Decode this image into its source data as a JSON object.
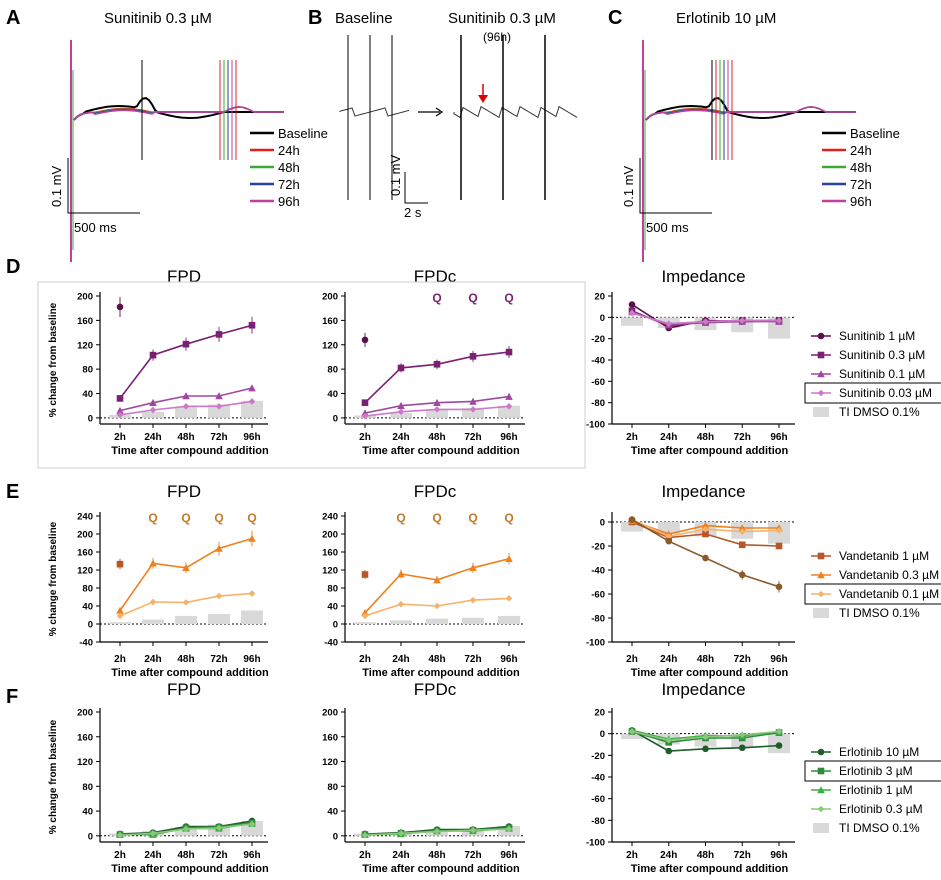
{
  "colors": {
    "baseline": "#000000",
    "h24": "#e02020",
    "h48": "#3aaa35",
    "h72": "#2444a0",
    "h96": "#c040a0",
    "suni": [
      "#5a0f4f",
      "#7b1f73",
      "#a047a0",
      "#cc7ac8"
    ],
    "vand": [
      "#b8572a",
      "#f0801e",
      "#f6b26b",
      "#8b5a2b"
    ],
    "erlo": [
      "#1e5c28",
      "#2e8b3c",
      "#3cac44",
      "#8cc87a"
    ],
    "dmso": "#d9d9d9",
    "star": "#8a2a80"
  },
  "panel_labels": [
    "A",
    "B",
    "C",
    "D",
    "E",
    "F"
  ],
  "trace_panels": {
    "A": {
      "title": "Sunitinib 0.3 µM",
      "legend": [
        "Baseline",
        "24h",
        "48h",
        "72h",
        "96h"
      ],
      "scale_v": "0.1 mV",
      "scale_t": "500 ms"
    },
    "B": {
      "left_title": "Baseline",
      "right_title": "Sunitinib 0.3 µM",
      "right_sub": "(96h)",
      "scale_v": "0.1 mV",
      "scale_t": "2 s"
    },
    "C": {
      "title": "Erlotinib 10 µM",
      "legend": [
        "Baseline",
        "24h",
        "48h",
        "72h",
        "96h"
      ],
      "scale_v": "0.1 mV",
      "scale_t": "500 ms"
    }
  },
  "chart_data": [
    {
      "id": "D-FPD",
      "type": "line",
      "title": "FPD",
      "xlabel": "Time after compound addition",
      "ylabel": "% change from baseline",
      "categories": [
        "2h",
        "24h",
        "48h",
        "72h",
        "96h"
      ],
      "yticks": [
        0,
        40,
        80,
        120,
        160,
        200
      ],
      "ylim": [
        -10,
        200
      ],
      "dmso": [
        5,
        10,
        18,
        22,
        28
      ],
      "series": [
        {
          "name": "Sunitinib 1 µM",
          "values": [
            182,
            null,
            null,
            null,
            null
          ],
          "marker": "circle"
        },
        {
          "name": "Sunitinib 0.3 µM",
          "values": [
            32,
            103,
            121,
            137,
            152
          ],
          "marker": "square"
        },
        {
          "name": "Sunitinib 0.1 µM",
          "values": [
            12,
            25,
            36,
            36,
            49
          ],
          "marker": "triangle"
        },
        {
          "name": "Sunitinib 0.03 µM",
          "values": [
            5,
            13,
            19,
            19,
            27
          ],
          "marker": "diamond"
        }
      ]
    },
    {
      "id": "D-FPDc",
      "type": "line",
      "title": "FPDc",
      "xlabel": "Time after compound addition",
      "ylabel": "",
      "categories": [
        "2h",
        "24h",
        "48h",
        "72h",
        "96h"
      ],
      "yticks": [
        0,
        40,
        80,
        120,
        160,
        200
      ],
      "ylim": [
        -10,
        200
      ],
      "annotations": [
        "Q",
        "Q",
        "Q"
      ],
      "dmso": [
        4,
        8,
        14,
        16,
        20
      ],
      "series": [
        {
          "name": "Sunitinib 1 µM",
          "values": [
            128,
            null,
            null,
            null,
            null
          ],
          "marker": "circle"
        },
        {
          "name": "Sunitinib 0.3 µM",
          "values": [
            25,
            82,
            88,
            101,
            108
          ],
          "marker": "square"
        },
        {
          "name": "Sunitinib 0.1 µM",
          "values": [
            8,
            20,
            25,
            27,
            35
          ],
          "marker": "triangle"
        },
        {
          "name": "Sunitinib 0.03 µM",
          "values": [
            3,
            10,
            14,
            14,
            19
          ],
          "marker": "diamond"
        }
      ]
    },
    {
      "id": "D-Imp",
      "type": "line",
      "title": "Impedance",
      "xlabel": "Time after compound addition",
      "ylabel": "",
      "categories": [
        "2h",
        "24h",
        "48h",
        "72h",
        "96h"
      ],
      "yticks": [
        20,
        0,
        -20,
        -40,
        -60,
        -80,
        -100
      ],
      "ylim": [
        -100,
        20
      ],
      "dmso": [
        -8,
        -10,
        -12,
        -14,
        -20
      ],
      "series": [
        {
          "name": "Sunitinib 1 µM",
          "values": [
            12,
            -10,
            -3,
            -4,
            -3
          ],
          "marker": "circle"
        },
        {
          "name": "Sunitinib 0.3 µM",
          "values": [
            6,
            -8,
            -4,
            -3,
            -3
          ],
          "marker": "square"
        },
        {
          "name": "Sunitinib 0.1 µM",
          "values": [
            5,
            -7,
            -5,
            -4,
            -4
          ],
          "marker": "triangle"
        },
        {
          "name": "Sunitinib 0.03 µM",
          "values": [
            4,
            -6,
            -4,
            -3,
            -3
          ],
          "marker": "diamond"
        }
      ],
      "legend": [
        "Sunitinib 1 µM",
        "Sunitinib 0.3 µM",
        "Sunitinib 0.1 µM",
        "Sunitinib 0.03 µM",
        "TI DMSO 0.1%"
      ],
      "legend_boxed": 3
    },
    {
      "id": "E-FPD",
      "type": "line",
      "title": "FPD",
      "xlabel": "Time after compound addition",
      "ylabel": "% change from baseline",
      "categories": [
        "2h",
        "24h",
        "48h",
        "72h",
        "96h"
      ],
      "yticks": [
        -40,
        0,
        40,
        80,
        120,
        160,
        200,
        240
      ],
      "ylim": [
        -40,
        240
      ],
      "annotations": [
        "Q",
        "Q",
        "Q",
        "Q"
      ],
      "dmso": [
        4,
        10,
        18,
        22,
        30
      ],
      "series": [
        {
          "name": "Vandetanib 1 µM",
          "values": [
            133,
            null,
            null,
            null,
            null
          ],
          "marker": "square"
        },
        {
          "name": "Vandetanib 0.3 µM",
          "values": [
            30,
            135,
            125,
            168,
            190
          ],
          "marker": "triangle"
        },
        {
          "name": "Vandetanib 0.1 µM",
          "values": [
            18,
            49,
            48,
            62,
            68
          ],
          "marker": "diamond"
        }
      ]
    },
    {
      "id": "E-FPDc",
      "type": "line",
      "title": "FPDc",
      "xlabel": "Time after compound addition",
      "ylabel": "",
      "categories": [
        "2h",
        "24h",
        "48h",
        "72h",
        "96h"
      ],
      "yticks": [
        -40,
        0,
        40,
        80,
        120,
        160,
        200,
        240
      ],
      "ylim": [
        -40,
        240
      ],
      "annotations": [
        "Q",
        "Q",
        "Q",
        "Q"
      ],
      "dmso": [
        4,
        8,
        12,
        14,
        18
      ],
      "series": [
        {
          "name": "Vandetanib 1 µM",
          "values": [
            110,
            null,
            null,
            null,
            null
          ],
          "marker": "square"
        },
        {
          "name": "Vandetanib 0.3 µM",
          "values": [
            25,
            111,
            98,
            125,
            145
          ],
          "marker": "triangle"
        },
        {
          "name": "Vandetanib 0.1 µM",
          "values": [
            18,
            44,
            40,
            53,
            57
          ],
          "marker": "diamond"
        }
      ]
    },
    {
      "id": "E-Imp",
      "type": "line",
      "title": "Impedance",
      "xlabel": "Time after compound addition",
      "ylabel": "",
      "categories": [
        "2h",
        "24h",
        "48h",
        "72h",
        "96h"
      ],
      "yticks": [
        0,
        -20,
        -40,
        -60,
        -80,
        -100
      ],
      "ylim": [
        -100,
        5
      ],
      "dmso": [
        -8,
        -10,
        -12,
        -14,
        -18
      ],
      "series": [
        {
          "name": "Vandetanib 1 µM",
          "values": [
            0,
            -13,
            -10,
            -19,
            -20
          ],
          "marker": "square"
        },
        {
          "name": "Vandetanib 0.3 µM",
          "values": [
            1,
            -10,
            -3,
            -5,
            -5
          ],
          "marker": "triangle"
        },
        {
          "name": "Vandetanib 0.1 µM",
          "values": [
            2,
            -12,
            -6,
            -8,
            -7
          ],
          "marker": "diamond"
        },
        {
          "name": "",
          "values": [
            2,
            -16,
            -30,
            -44,
            -54
          ],
          "marker": "circle"
        }
      ],
      "legend": [
        "Vandetanib 1 µM",
        "Vandetanib 0.3 µM",
        "Vandetanib 0.1 µM",
        "TI DMSO 0.1%"
      ],
      "legend_boxed": 2
    },
    {
      "id": "F-FPD",
      "type": "line",
      "title": "FPD",
      "xlabel": "Time after compound addition",
      "ylabel": "% change from baseline",
      "categories": [
        "2h",
        "24h",
        "48h",
        "72h",
        "96h"
      ],
      "yticks": [
        0,
        40,
        80,
        120,
        160,
        200
      ],
      "ylim": [
        -10,
        200
      ],
      "dmso": [
        4,
        8,
        14,
        18,
        24
      ],
      "series": [
        {
          "name": "Erlotinib 10 µM",
          "values": [
            3,
            5,
            15,
            15,
            24
          ],
          "marker": "circle"
        },
        {
          "name": "Erlotinib 3 µM",
          "values": [
            2,
            3,
            13,
            14,
            21
          ],
          "marker": "square"
        },
        {
          "name": "Erlotinib 1 µM",
          "values": [
            2,
            2,
            12,
            12,
            20
          ],
          "marker": "triangle"
        },
        {
          "name": "Erlotinib 0.3 µM",
          "values": [
            1,
            4,
            11,
            13,
            19
          ],
          "marker": "diamond"
        }
      ]
    },
    {
      "id": "F-FPDc",
      "type": "line",
      "title": "FPDc",
      "xlabel": "Time after compound addition",
      "ylabel": "",
      "categories": [
        "2h",
        "24h",
        "48h",
        "72h",
        "96h"
      ],
      "yticks": [
        0,
        40,
        80,
        120,
        160,
        200
      ],
      "ylim": [
        -10,
        200
      ],
      "dmso": [
        3,
        6,
        9,
        12,
        16
      ],
      "series": [
        {
          "name": "Erlotinib 10 µM",
          "values": [
            3,
            5,
            10,
            10,
            15
          ],
          "marker": "circle"
        },
        {
          "name": "Erlotinib 3 µM",
          "values": [
            2,
            4,
            8,
            9,
            13
          ],
          "marker": "square"
        },
        {
          "name": "Erlotinib 1 µM",
          "values": [
            2,
            3,
            8,
            8,
            12
          ],
          "marker": "triangle"
        },
        {
          "name": "Erlotinib 0.3 µM",
          "values": [
            1,
            4,
            7,
            9,
            11
          ],
          "marker": "diamond"
        }
      ]
    },
    {
      "id": "F-Imp",
      "type": "line",
      "title": "Impedance",
      "xlabel": "Time after compound addition",
      "ylabel": "",
      "categories": [
        "2h",
        "24h",
        "48h",
        "72h",
        "96h"
      ],
      "yticks": [
        20,
        0,
        -20,
        -40,
        -60,
        -80,
        -100
      ],
      "ylim": [
        -100,
        20
      ],
      "dmso": [
        -5,
        -10,
        -12,
        -13,
        -18
      ],
      "series": [
        {
          "name": "Erlotinib 10 µM",
          "values": [
            3,
            -16,
            -14,
            -13,
            -11
          ],
          "marker": "circle"
        },
        {
          "name": "Erlotinib 3 µM",
          "values": [
            2,
            -8,
            -4,
            -4,
            1
          ],
          "marker": "square"
        },
        {
          "name": "Erlotinib 1 µM",
          "values": [
            3,
            -5,
            -2,
            -2,
            2
          ],
          "marker": "triangle"
        },
        {
          "name": "Erlotinib 0.3 µM",
          "values": [
            2,
            -6,
            -3,
            -1,
            2
          ],
          "marker": "diamond"
        }
      ],
      "legend": [
        "Erlotinib 10 µM",
        "Erlotinib 3 µM",
        "Erlotinib 1 µM",
        "Erlotinib 0.3 µM",
        "TI DMSO 0.1%"
      ],
      "legend_boxed": 1
    }
  ]
}
